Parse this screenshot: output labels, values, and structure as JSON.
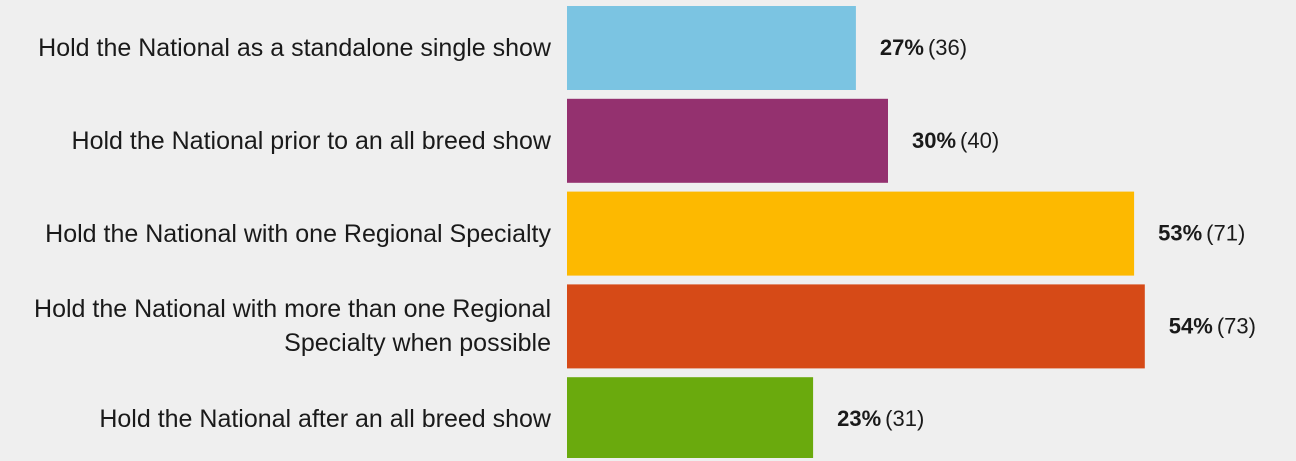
{
  "chart_data": {
    "type": "bar",
    "orientation": "horizontal",
    "categories": [
      "Hold the National as a standalone single show",
      "Hold the National prior to an all breed show",
      "Hold the National with one Regional Specialty",
      "Hold the National with more than one Regional Specialty when possible",
      "Hold the National after an all breed show"
    ],
    "values": [
      27,
      30,
      53,
      54,
      23
    ],
    "value_labels": [
      "27%",
      "30%",
      "53%",
      "54%",
      "23%"
    ],
    "counts": [
      36,
      40,
      71,
      73,
      31
    ],
    "count_labels": [
      "(36)",
      "(40)",
      "(71)",
      "(73)",
      "(31)"
    ],
    "colors": [
      "#7bc4e2",
      "#94316f",
      "#fdb900",
      "#d64a17",
      "#6aaa0d"
    ]
  }
}
